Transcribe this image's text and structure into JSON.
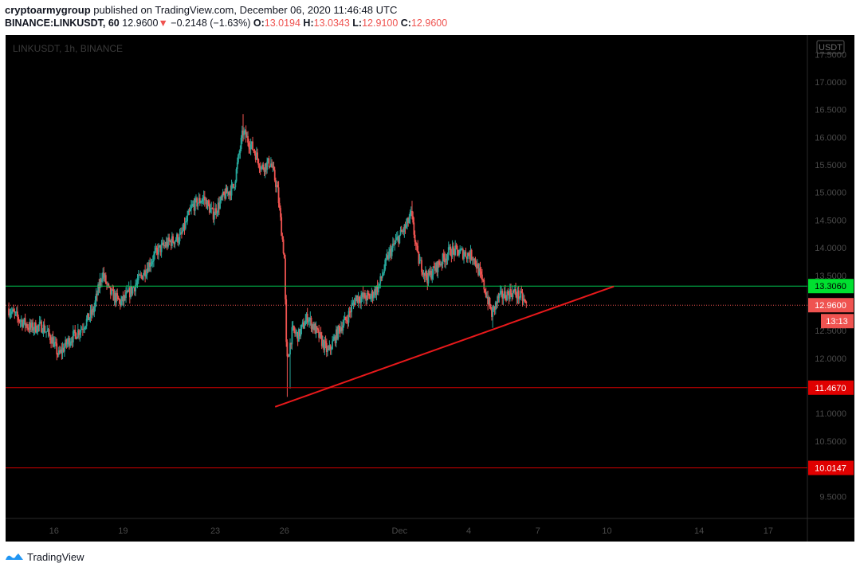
{
  "header": {
    "publisher": "cryptoarmygroup",
    "published_text": "published on TradingView.com, December 06, 2020 11:46:48 UTC",
    "symbol": "BINANCE:LINKUSDT, 60",
    "last": "12.9600",
    "arrow": "▼",
    "change": "−0.2148 (−1.63%)",
    "o_label": "O:",
    "o_value": "13.0194",
    "h_label": "H:",
    "h_value": "13.0343",
    "l_label": "L:",
    "l_value": "12.9100",
    "c_label": "C:",
    "c_value": "12.9600"
  },
  "footer": {
    "brand": "TradingView"
  },
  "colors": {
    "bg": "#000000",
    "up": "#26a69a",
    "down": "#ef5350",
    "green_line": "#00c853",
    "red_line": "#d50000",
    "trend": "#e8191b",
    "axis_text": "#4a4a4a"
  },
  "chart_data": {
    "type": "candlestick",
    "symbol_watermark": "LINKUSDT, 1h, BINANCE",
    "currency_label": "USDT",
    "ylim": [
      9.1,
      17.85
    ],
    "y_ticks": [
      "9.5000",
      "10.0000",
      "10.5000",
      "11.0000",
      "11.5000",
      "12.0000",
      "12.5000",
      "13.0000",
      "13.5000",
      "14.0000",
      "14.5000",
      "15.0000",
      "15.5000",
      "16.0000",
      "16.5000",
      "17.0000",
      "17.5000"
    ],
    "x_ticks": [
      {
        "label": "16",
        "day": 16
      },
      {
        "label": "19",
        "day": 19
      },
      {
        "label": "23",
        "day": 23
      },
      {
        "label": "26",
        "day": 26
      },
      {
        "label": "Dec",
        "day": 31
      },
      {
        "label": "4",
        "day": 34
      },
      {
        "label": "7",
        "day": 37
      },
      {
        "label": "10",
        "day": 40
      },
      {
        "label": "14",
        "day": 44
      },
      {
        "label": "17",
        "day": 47
      }
    ],
    "xlim_day": [
      13.9,
      48.7
    ],
    "horizontal_lines": [
      {
        "price": 13.306,
        "label": "13.3060",
        "color": "#00c853",
        "label_bg": "#00e030",
        "label_fg": "#000000"
      },
      {
        "price": 11.467,
        "label": "11.4670",
        "color": "#d50000",
        "label_bg": "#e00000",
        "label_fg": "#ffffff"
      },
      {
        "price": 10.0147,
        "label": "10.0147",
        "color": "#d50000",
        "label_bg": "#e00000",
        "label_fg": "#ffffff"
      }
    ],
    "current_price": {
      "price": 12.96,
      "label": "12.9600",
      "countdown": "13:13",
      "color": "#ef5350"
    },
    "trendline": {
      "start_day": 25.6,
      "start_price": 11.12,
      "end_day": 40.3,
      "end_price": 13.3
    },
    "price_path": [
      [
        14.0,
        12.9
      ],
      [
        14.5,
        12.7
      ],
      [
        15.0,
        12.55
      ],
      [
        15.5,
        12.58
      ],
      [
        15.9,
        12.35
      ],
      [
        16.2,
        12.05
      ],
      [
        16.6,
        12.3
      ],
      [
        17.2,
        12.55
      ],
      [
        17.7,
        12.85
      ],
      [
        18.1,
        13.55
      ],
      [
        18.4,
        13.2
      ],
      [
        18.9,
        13.0
      ],
      [
        19.4,
        13.25
      ],
      [
        19.9,
        13.55
      ],
      [
        20.5,
        13.95
      ],
      [
        21.0,
        14.1
      ],
      [
        21.5,
        14.2
      ],
      [
        22.0,
        14.75
      ],
      [
        22.5,
        14.9
      ],
      [
        22.9,
        14.6
      ],
      [
        23.4,
        14.95
      ],
      [
        23.8,
        15.1
      ],
      [
        24.2,
        16.1
      ],
      [
        24.7,
        15.75
      ],
      [
        25.0,
        15.45
      ],
      [
        25.4,
        15.55
      ],
      [
        25.7,
        15.05
      ],
      [
        26.0,
        13.8
      ],
      [
        26.1,
        11.9
      ],
      [
        26.35,
        12.5
      ],
      [
        26.6,
        12.4
      ],
      [
        27.0,
        12.75
      ],
      [
        27.5,
        12.4
      ],
      [
        27.9,
        12.1
      ],
      [
        28.4,
        12.55
      ],
      [
        28.7,
        12.7
      ],
      [
        29.1,
        13.1
      ],
      [
        29.7,
        13.1
      ],
      [
        30.1,
        13.3
      ],
      [
        30.5,
        13.85
      ],
      [
        30.9,
        14.15
      ],
      [
        31.3,
        14.4
      ],
      [
        31.5,
        14.6
      ],
      [
        31.8,
        13.8
      ],
      [
        32.2,
        13.45
      ],
      [
        32.7,
        13.7
      ],
      [
        33.2,
        13.95
      ],
      [
        33.8,
        13.9
      ],
      [
        34.2,
        13.85
      ],
      [
        34.7,
        13.25
      ],
      [
        35.0,
        12.8
      ],
      [
        35.3,
        13.1
      ],
      [
        35.9,
        13.2
      ],
      [
        36.3,
        13.1
      ],
      [
        36.5,
        12.96
      ]
    ]
  }
}
